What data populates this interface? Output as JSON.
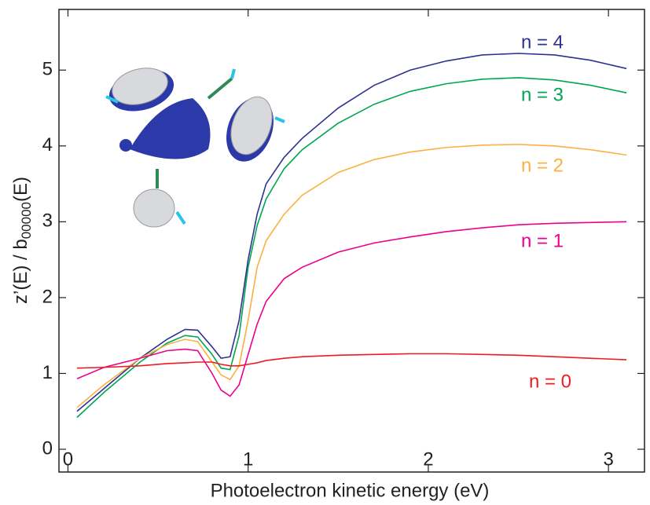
{
  "chart_data": {
    "type": "line",
    "xlabel": "Photoelectron kinetic energy (eV)",
    "ylabel": {
      "main": "z’(E) / b",
      "sub": "00000",
      "tail": "(E)"
    },
    "x": [
      0.05,
      0.2,
      0.4,
      0.55,
      0.65,
      0.72,
      0.8,
      0.85,
      0.9,
      0.95,
      1.0,
      1.05,
      1.1,
      1.2,
      1.3,
      1.5,
      1.7,
      1.9,
      2.1,
      2.3,
      2.5,
      2.7,
      2.9,
      3.1
    ],
    "series": [
      {
        "name": "n = 4",
        "color": "#2e3192",
        "values": [
          0.5,
          0.8,
          1.2,
          1.45,
          1.58,
          1.57,
          1.35,
          1.2,
          1.22,
          1.7,
          2.5,
          3.1,
          3.5,
          3.85,
          4.1,
          4.5,
          4.8,
          5.0,
          5.12,
          5.2,
          5.22,
          5.2,
          5.13,
          5.02
        ]
      },
      {
        "name": "n = 3",
        "color": "#00a651",
        "values": [
          0.42,
          0.75,
          1.15,
          1.4,
          1.5,
          1.48,
          1.25,
          1.07,
          1.05,
          1.5,
          2.4,
          2.95,
          3.3,
          3.7,
          3.95,
          4.3,
          4.55,
          4.72,
          4.82,
          4.88,
          4.9,
          4.87,
          4.8,
          4.7
        ]
      },
      {
        "name": "n = 2",
        "color": "#fbb040",
        "values": [
          0.55,
          0.85,
          1.2,
          1.38,
          1.45,
          1.42,
          1.15,
          0.98,
          0.92,
          1.1,
          1.7,
          2.4,
          2.75,
          3.1,
          3.35,
          3.65,
          3.82,
          3.92,
          3.98,
          4.01,
          4.02,
          4.0,
          3.95,
          3.88
        ]
      },
      {
        "name": "n = 1",
        "color": "#ec008c",
        "values": [
          0.93,
          1.08,
          1.2,
          1.3,
          1.32,
          1.3,
          1.0,
          0.78,
          0.7,
          0.85,
          1.25,
          1.65,
          1.95,
          2.25,
          2.4,
          2.6,
          2.72,
          2.8,
          2.87,
          2.92,
          2.96,
          2.98,
          2.99,
          3.0
        ]
      },
      {
        "name": "n = 0",
        "color": "#ed1c24",
        "values": [
          1.07,
          1.08,
          1.1,
          1.13,
          1.14,
          1.15,
          1.15,
          1.12,
          1.1,
          1.1,
          1.12,
          1.14,
          1.17,
          1.2,
          1.22,
          1.24,
          1.25,
          1.26,
          1.26,
          1.25,
          1.24,
          1.22,
          1.2,
          1.18
        ]
      }
    ],
    "xlim": [
      -0.05,
      3.2
    ],
    "xticks": [
      0,
      1,
      2,
      3
    ],
    "ylim": [
      -0.3,
      5.8
    ],
    "yticks": [
      0,
      1,
      2,
      3,
      4,
      5
    ]
  }
}
